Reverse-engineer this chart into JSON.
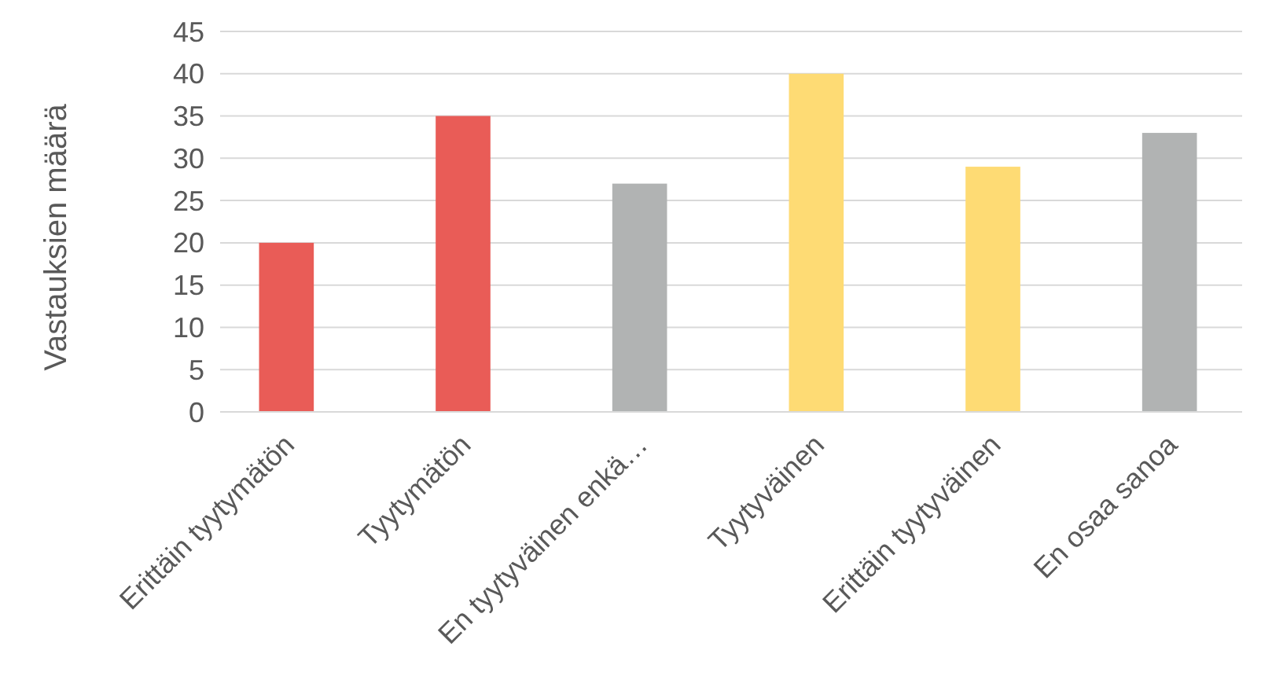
{
  "chart_data": {
    "type": "bar",
    "ylabel": "Vastauksien määrä",
    "categories": [
      "Erittäin tyytymätön",
      "Tyytymätön",
      "En tyytyväinen enkä…",
      "Tyytyväinen",
      "Erittäin tyytyväinen",
      "En osaa sanoa"
    ],
    "values": [
      20,
      35,
      27,
      40,
      29,
      33
    ],
    "colors": [
      "#e95c57",
      "#e95c57",
      "#b1b3b3",
      "#fedb74",
      "#fedb74",
      "#b1b3b3"
    ],
    "ylim": [
      0,
      45
    ],
    "yticks": [
      0,
      5,
      10,
      15,
      20,
      25,
      30,
      35,
      40,
      45
    ],
    "grid": "y"
  }
}
